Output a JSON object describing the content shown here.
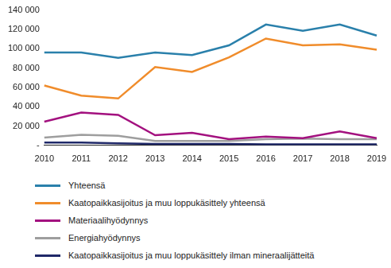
{
  "chart_data": {
    "type": "line",
    "categories": [
      "2010",
      "2011",
      "2012",
      "2013",
      "2014",
      "2015",
      "2016",
      "2017",
      "2018",
      "2019"
    ],
    "series": [
      {
        "name": "Yhteensä",
        "color": "#2a80ab",
        "values": [
          96000,
          96000,
          90500,
          96000,
          93500,
          103500,
          125000,
          118500,
          125000,
          113500
        ]
      },
      {
        "name": "Kaatopaikkasijoitus ja muu loppukäsittely yhteensä",
        "color": "#f08c2b",
        "values": [
          62000,
          51500,
          48500,
          81000,
          76000,
          91000,
          110500,
          103500,
          104500,
          99000
        ]
      },
      {
        "name": "Materiaalihyödynnys",
        "color": "#a3117f",
        "values": [
          24500,
          34000,
          31500,
          10500,
          13000,
          6500,
          9000,
          7500,
          14500,
          7500
        ]
      },
      {
        "name": "Energiahyödynnys",
        "color": "#9e9e9e",
        "values": [
          8000,
          11000,
          10000,
          4500,
          4500,
          4500,
          6500,
          7000,
          6500,
          6500
        ]
      },
      {
        "name": "Kaatopaikkasijoitus ja muu loppukäsittely ilman mineraalijätteitä",
        "color": "#1f2868",
        "values": [
          3000,
          3000,
          2000,
          1500,
          1500,
          1500,
          1000,
          1000,
          1000,
          1000
        ]
      }
    ],
    "ylim": [
      0,
      140000
    ],
    "yticks": [
      {
        "value": 0,
        "label": "-"
      },
      {
        "value": 20000,
        "label": "20 000"
      },
      {
        "value": 40000,
        "label": "40 000"
      },
      {
        "value": 60000,
        "label": "60 000"
      },
      {
        "value": 80000,
        "label": "80 000"
      },
      {
        "value": 100000,
        "label": "100 000"
      },
      {
        "value": 120000,
        "label": "120 000"
      },
      {
        "value": 140000,
        "label": "140 000"
      }
    ],
    "grid": false,
    "legend": "bottom"
  }
}
